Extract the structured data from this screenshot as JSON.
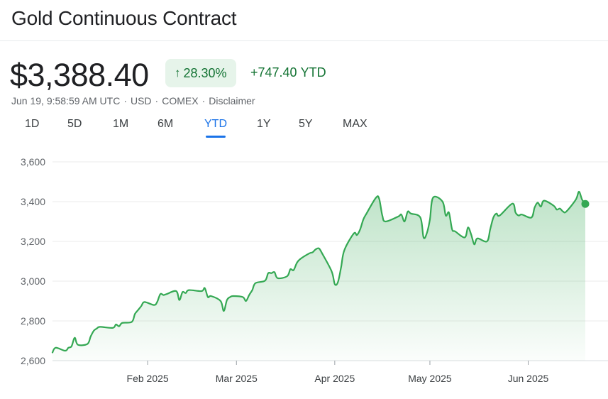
{
  "header": {
    "title": "Gold Continuous Contract"
  },
  "quote": {
    "price": "$3,388.40",
    "change_pct": "28.30%",
    "change_abs": "+747.40",
    "change_period": "YTD",
    "arrow_icon": "arrow-up-icon",
    "up_color": "#137333",
    "badge_bg": "#e6f4ea"
  },
  "meta": {
    "timestamp": "Jun 19, 9:58:59 AM UTC",
    "currency": "USD",
    "exchange": "COMEX",
    "disclaimer": "Disclaimer"
  },
  "tabs": [
    {
      "label": "1D"
    },
    {
      "label": "5D"
    },
    {
      "label": "1M"
    },
    {
      "label": "6M"
    },
    {
      "label": "YTD",
      "active": true
    },
    {
      "label": "1Y"
    },
    {
      "label": "5Y"
    },
    {
      "label": "MAX"
    }
  ],
  "chart_data": {
    "type": "area",
    "series": [
      {
        "color": "#34a853",
        "x": [
          "2025-01-02",
          "2025-01-03",
          "2025-01-06",
          "2025-01-07",
          "2025-01-08",
          "2025-01-09",
          "2025-01-10",
          "2025-01-13",
          "2025-01-14",
          "2025-01-15",
          "2025-01-16",
          "2025-01-17",
          "2025-01-21",
          "2025-01-22",
          "2025-01-23",
          "2025-01-24",
          "2025-01-27",
          "2025-01-28",
          "2025-01-29",
          "2025-01-30",
          "2025-01-31",
          "2025-02-03",
          "2025-02-04",
          "2025-02-05",
          "2025-02-06",
          "2025-02-07",
          "2025-02-10",
          "2025-02-11",
          "2025-02-12",
          "2025-02-13",
          "2025-02-14",
          "2025-02-18",
          "2025-02-19",
          "2025-02-20",
          "2025-02-21",
          "2025-02-24",
          "2025-02-25",
          "2025-02-26",
          "2025-02-27",
          "2025-02-28",
          "2025-03-03",
          "2025-03-04",
          "2025-03-05",
          "2025-03-06",
          "2025-03-07",
          "2025-03-10",
          "2025-03-11",
          "2025-03-12",
          "2025-03-13",
          "2025-03-14",
          "2025-03-17",
          "2025-03-18",
          "2025-03-19",
          "2025-03-20",
          "2025-03-21",
          "2025-03-24",
          "2025-03-25",
          "2025-03-26",
          "2025-03-27",
          "2025-03-28",
          "2025-03-31",
          "2025-04-01",
          "2025-04-02",
          "2025-04-03",
          "2025-04-04",
          "2025-04-07",
          "2025-04-08",
          "2025-04-09",
          "2025-04-10",
          "2025-04-11",
          "2025-04-14",
          "2025-04-15",
          "2025-04-16",
          "2025-04-17",
          "2025-04-21",
          "2025-04-22",
          "2025-04-23",
          "2025-04-24",
          "2025-04-25",
          "2025-04-28",
          "2025-04-29",
          "2025-04-30",
          "2025-05-01",
          "2025-05-02",
          "2025-05-05",
          "2025-05-06",
          "2025-05-07",
          "2025-05-08",
          "2025-05-09",
          "2025-05-12",
          "2025-05-13",
          "2025-05-14",
          "2025-05-15",
          "2025-05-16",
          "2025-05-19",
          "2025-05-20",
          "2025-05-21",
          "2025-05-22",
          "2025-05-23",
          "2025-05-27",
          "2025-05-28",
          "2025-05-29",
          "2025-05-30",
          "2025-06-02",
          "2025-06-03",
          "2025-06-04",
          "2025-06-05",
          "2025-06-06",
          "2025-06-09",
          "2025-06-10",
          "2025-06-11",
          "2025-06-12",
          "2025-06-13",
          "2025-06-16",
          "2025-06-17",
          "2025-06-18",
          "2025-06-19"
        ],
        "y": [
          2641,
          2665,
          2650,
          2665,
          2672,
          2715,
          2680,
          2684,
          2720,
          2750,
          2762,
          2770,
          2765,
          2782,
          2773,
          2790,
          2795,
          2835,
          2855,
          2875,
          2895,
          2880,
          2895,
          2935,
          2930,
          2935,
          2950,
          2905,
          2945,
          2940,
          2955,
          2950,
          2965,
          2920,
          2925,
          2900,
          2850,
          2905,
          2920,
          2925,
          2920,
          2900,
          2930,
          2955,
          2990,
          3002,
          3040,
          3040,
          3045,
          3015,
          3025,
          3060,
          3055,
          3090,
          3110,
          3140,
          3145,
          3160,
          3165,
          3140,
          3050,
          2985,
          2995,
          3070,
          3155,
          3240,
          3232,
          3260,
          3310,
          3340,
          3420,
          3415,
          3330,
          3300,
          3325,
          3335,
          3300,
          3350,
          3340,
          3320,
          3220,
          3240,
          3310,
          3420,
          3400,
          3330,
          3345,
          3260,
          3250,
          3220,
          3270,
          3235,
          3185,
          3215,
          3200,
          3260,
          3320,
          3340,
          3330,
          3390,
          3345,
          3330,
          3335,
          3320,
          3370,
          3395,
          3375,
          3405,
          3380,
          3360,
          3365,
          3350,
          3350,
          3410,
          3450,
          3410,
          3388.4
        ]
      }
    ],
    "yticks": [
      2600,
      2800,
      3000,
      3200,
      3400,
      3600
    ],
    "ytick_labels": [
      "2,600",
      "2,800",
      "3,000",
      "3,200",
      "3,400",
      "3,600"
    ],
    "ylim": [
      2600,
      3600
    ],
    "xticks": [
      {
        "x": "2025-02-01",
        "label": "Feb 2025"
      },
      {
        "x": "2025-03-01",
        "label": "Mar 2025"
      },
      {
        "x": "2025-04-01",
        "label": "Apr 2025"
      },
      {
        "x": "2025-05-01",
        "label": "May 2025"
      },
      {
        "x": "2025-06-01",
        "label": "Jun 2025"
      }
    ],
    "xlim": [
      "2025-01-02",
      "2025-06-19"
    ],
    "grid": true,
    "legend": "none"
  }
}
